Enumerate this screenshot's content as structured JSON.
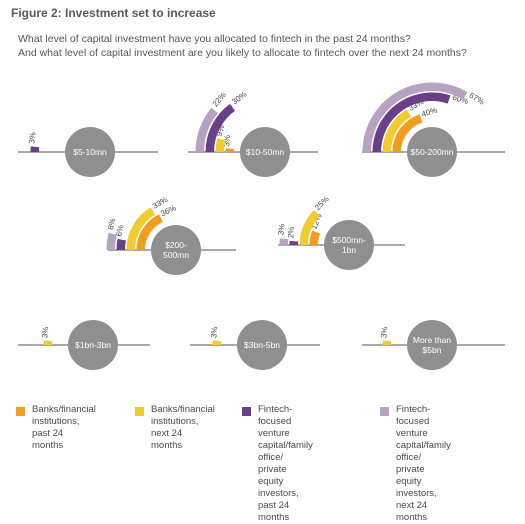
{
  "title": "Figure 2: Investment set to increase",
  "subtitle_line_1": "What level of capital investment have you allocated to fintech in the past 24 months?",
  "subtitle_line_2": "And what level of capital investment are you likely to allocate to fintech over the next 24 months?",
  "colors": {
    "banks_past": "#f39c1f",
    "banks_next": "#f2cc2f",
    "vc_past": "#6b3f87",
    "vc_next": "#b7a2c4",
    "circle": "#8f8f8f",
    "axis": "#555555"
  },
  "legend": [
    {
      "label": "Banks/financial\ninstitutions,\npast 24 months",
      "color": "#f39c1f"
    },
    {
      "label": "Banks/financial\ninstitutions,\nnext 24 months",
      "color": "#f2cc2f"
    },
    {
      "label": "Fintech-focused venture\ncapital/family office/\nprivate equity investors,\npast 24 months",
      "color": "#6b3f87"
    },
    {
      "label": "Fintech-focused venture\ncapital/family office/\nprivate equity investors,\nnext 24 months",
      "color": "#b7a2c4"
    }
  ],
  "chart_data": {
    "type": "radial-bar",
    "unit": "%",
    "series": [
      {
        "name": "Banks/financial institutions, past 24 months",
        "color": "#f39c1f"
      },
      {
        "name": "Banks/financial institutions, next 24 months",
        "color": "#f2cc2f"
      },
      {
        "name": "Fintech-focused venture capital/family office/private equity investors, past 24 months",
        "color": "#6b3f87"
      },
      {
        "name": "Fintech-focused venture capital/family office/private equity investors, next 24 months",
        "color": "#b7a2c4"
      }
    ],
    "panels": [
      {
        "category": "$5-10mn",
        "bars": [
          {
            "series": 2,
            "value": 3,
            "label": "3%"
          }
        ]
      },
      {
        "category": "$10-50mn",
        "bars": [
          {
            "series": 0,
            "value": 3,
            "label": "3%"
          },
          {
            "series": 1,
            "value": 9,
            "label": "9%"
          },
          {
            "series": 2,
            "value": 30,
            "label": "30%"
          },
          {
            "series": 3,
            "value": 22,
            "label": "22%"
          }
        ]
      },
      {
        "category": "$50-200mn",
        "bars": [
          {
            "series": 0,
            "value": 40,
            "label": "40%"
          },
          {
            "series": 1,
            "value": 33,
            "label": "33%"
          },
          {
            "series": 2,
            "value": 60,
            "label": "60%"
          },
          {
            "series": 3,
            "value": 67,
            "label": "67%"
          }
        ]
      },
      {
        "category": "$200-500mn",
        "bars": [
          {
            "series": 0,
            "value": 36,
            "label": "36%"
          },
          {
            "series": 1,
            "value": 33,
            "label": "33%"
          },
          {
            "series": 2,
            "value": 6,
            "label": "6%"
          },
          {
            "series": 3,
            "value": 8,
            "label": "8%"
          }
        ]
      },
      {
        "category": "$500mn-1bn",
        "bars": [
          {
            "series": 0,
            "value": 12,
            "label": "12%"
          },
          {
            "series": 1,
            "value": 25,
            "label": "25%"
          },
          {
            "series": 2,
            "value": 2,
            "label": "2%"
          },
          {
            "series": 3,
            "value": 3,
            "label": "3%"
          }
        ]
      },
      {
        "category": "$1bn-3bn",
        "bars": [
          {
            "series": 1,
            "value": 3,
            "label": "3%"
          }
        ]
      },
      {
        "category": "$3bn-5bn",
        "bars": [
          {
            "series": 1,
            "value": 3,
            "label": "3%"
          }
        ]
      },
      {
        "category": "More than $5bn",
        "bars": [
          {
            "series": 1,
            "value": 3,
            "label": "3%"
          }
        ]
      }
    ]
  }
}
